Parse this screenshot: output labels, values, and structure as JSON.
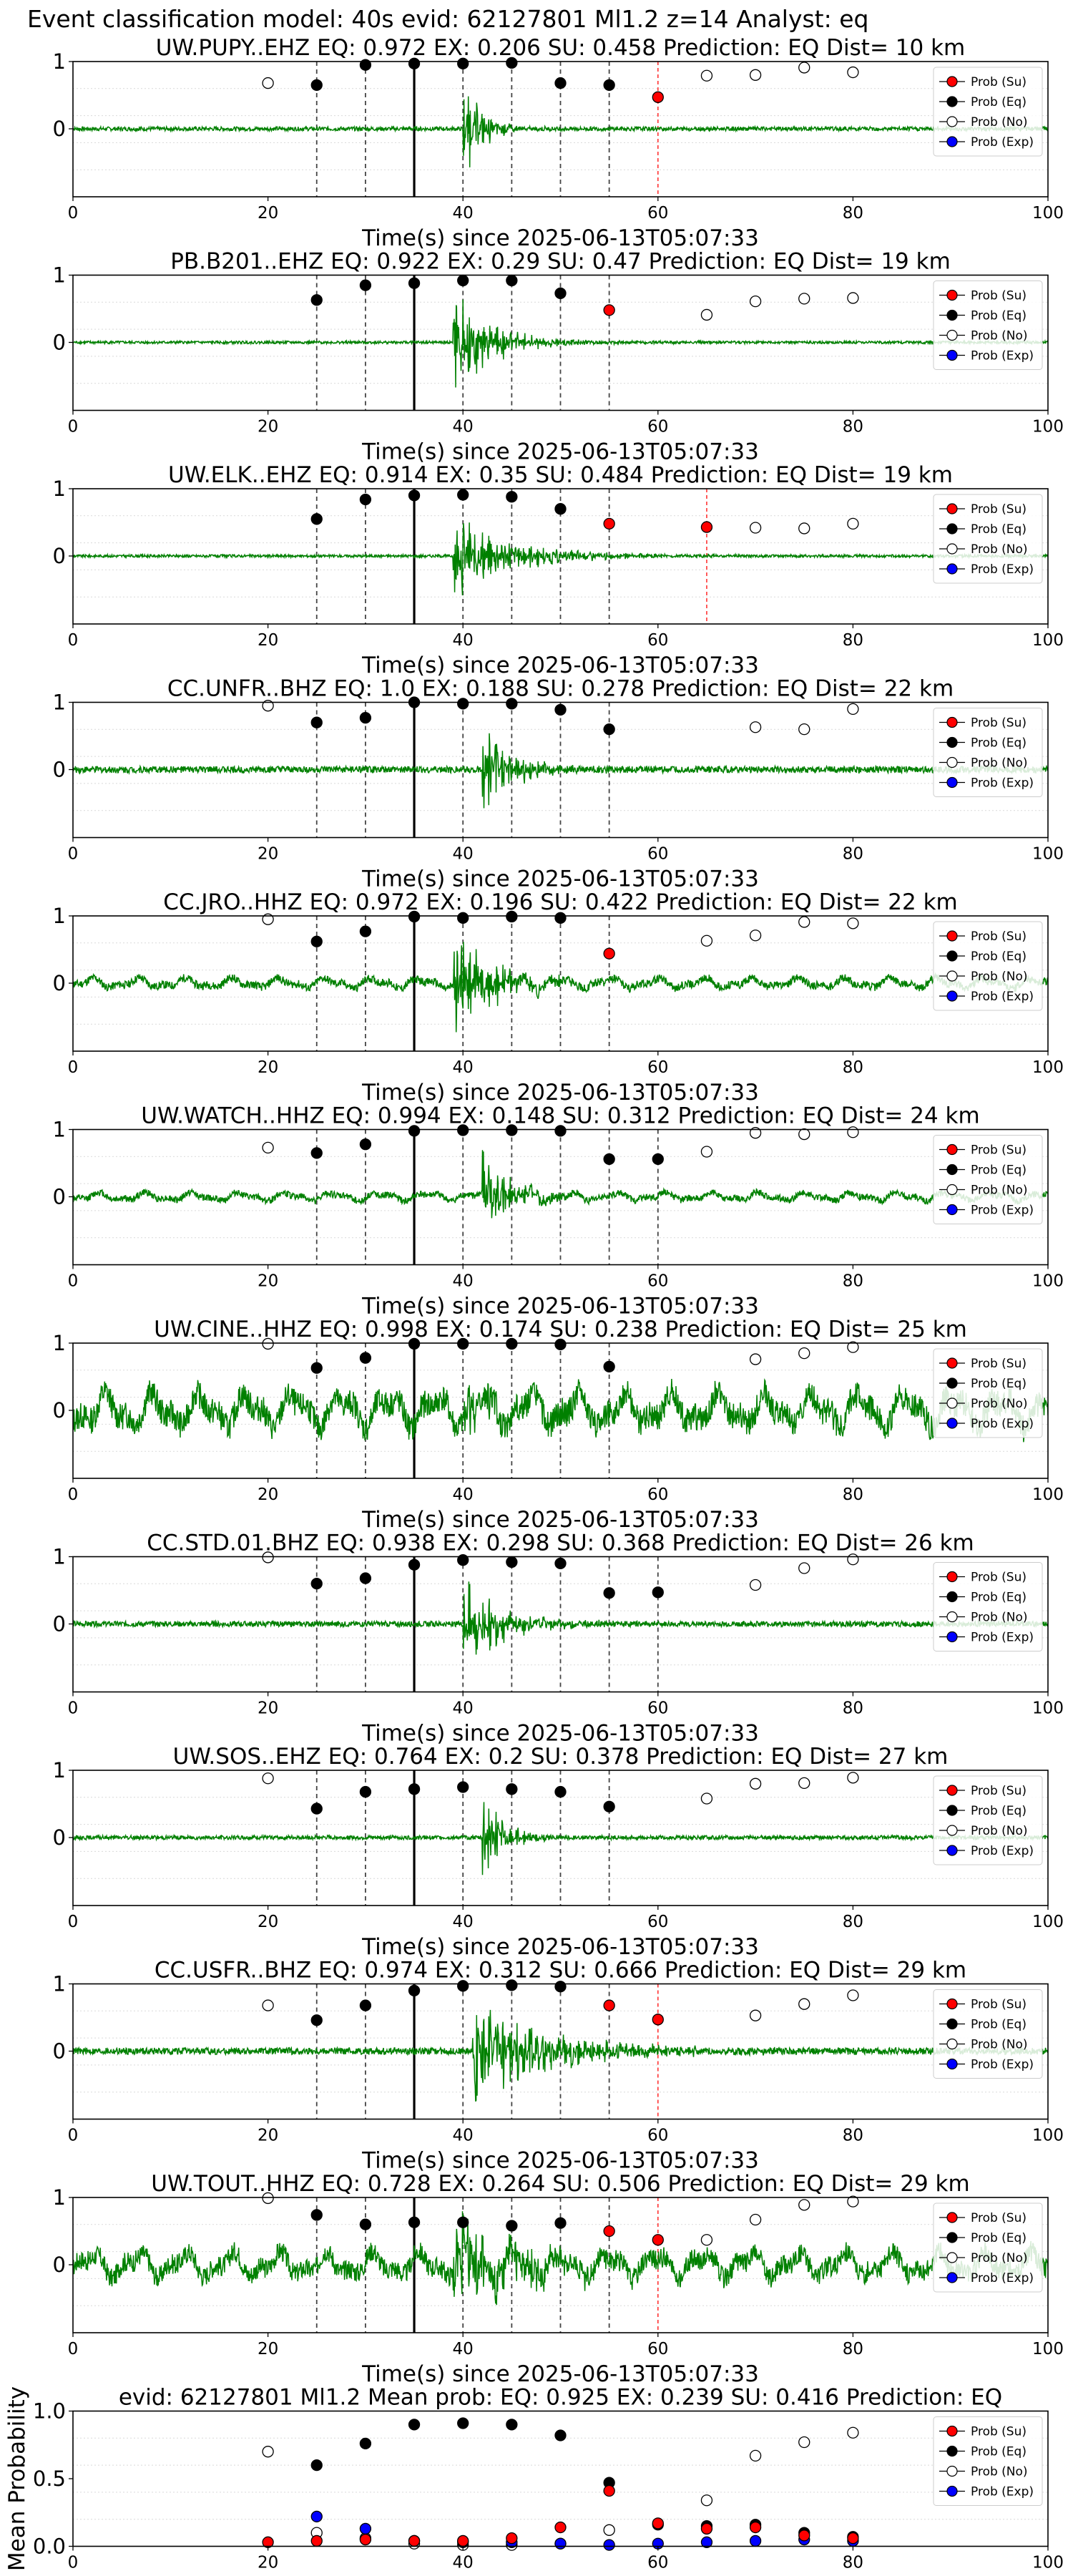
{
  "figure": {
    "suptitle": "Event classification model: 40s evid: 62127801 Ml1.2 z=14 Analyst: eq"
  },
  "legend": {
    "entries": [
      {
        "label": "Prob (Su)",
        "color": "#ff0000"
      },
      {
        "label": "Prob (Eq)",
        "color": "#000000"
      },
      {
        "label": "Prob (No)",
        "color": "#ffffff"
      },
      {
        "label": "Prob (Exp)",
        "color": "#0000ff"
      }
    ]
  },
  "colors": {
    "waveform": "#008000",
    "su": "#ff0000",
    "eq": "#000000",
    "no": "#ffffff",
    "exp": "#0000ff",
    "window_line": "#444444",
    "su_window_line": "#ff3333",
    "grid": "#d9d9d9"
  },
  "chart_data": [
    {
      "type": "scatter",
      "title": "UW.PUPY..EHZ   EQ: 0.972  EX: 0.206  SU: 0.458   Prediction: EQ    Dist= 10 km",
      "xlabel": "Time(s) since 2025-06-13T05:07:33",
      "xlim": [
        0,
        100
      ],
      "xticks": [
        "0",
        "20",
        "40",
        "60",
        "80",
        "100"
      ],
      "yticks": [
        "0",
        "1"
      ],
      "arrival_time": 35,
      "waveform": {
        "amp": 0.03,
        "event_amp": 0.5,
        "event_start": 40,
        "event_decay": 2,
        "low_freq": false
      },
      "series": {
        "su": [
          [
            60,
            0.47
          ]
        ],
        "eq": [
          [
            25,
            0.65
          ],
          [
            30,
            0.95
          ],
          [
            35,
            0.97
          ],
          [
            40,
            0.97
          ],
          [
            45,
            0.98
          ],
          [
            50,
            0.68
          ],
          [
            55,
            0.65
          ]
        ],
        "no": [
          [
            20,
            0.68
          ],
          [
            65,
            0.79
          ],
          [
            70,
            0.8
          ],
          [
            75,
            0.91
          ],
          [
            80,
            0.84
          ]
        ],
        "exp": []
      },
      "su_windows": [
        60
      ]
    },
    {
      "type": "scatter",
      "title": "PB.B201..EHZ   EQ: 0.922  EX: 0.29  SU: 0.47   Prediction: EQ    Dist= 19 km",
      "xlabel": "Time(s) since 2025-06-13T05:07:33",
      "xlim": [
        0,
        100
      ],
      "xticks": [
        "0",
        "20",
        "40",
        "60",
        "80",
        "100"
      ],
      "yticks": [
        "0",
        "1"
      ],
      "arrival_time": 35,
      "waveform": {
        "amp": 0.02,
        "event_amp": 0.55,
        "event_start": 39,
        "event_decay": 4,
        "low_freq": false
      },
      "series": {
        "su": [
          [
            55,
            0.48
          ]
        ],
        "eq": [
          [
            25,
            0.63
          ],
          [
            30,
            0.85
          ],
          [
            35,
            0.88
          ],
          [
            40,
            0.92
          ],
          [
            45,
            0.92
          ],
          [
            50,
            0.73
          ]
        ],
        "no": [
          [
            65,
            0.41
          ],
          [
            70,
            0.61
          ],
          [
            75,
            0.65
          ],
          [
            80,
            0.66
          ]
        ],
        "exp": []
      },
      "su_windows": []
    },
    {
      "type": "scatter",
      "title": "UW.ELK..EHZ   EQ: 0.914  EX: 0.35  SU: 0.484   Prediction: EQ    Dist= 19 km",
      "xlabel": "Time(s) since 2025-06-13T05:07:33",
      "xlim": [
        0,
        100
      ],
      "xticks": [
        "0",
        "20",
        "40",
        "60",
        "80",
        "100"
      ],
      "yticks": [
        "0",
        "1"
      ],
      "arrival_time": 35,
      "waveform": {
        "amp": 0.02,
        "event_amp": 0.45,
        "event_start": 39,
        "event_decay": 6,
        "low_freq": false
      },
      "series": {
        "su": [
          [
            55,
            0.48
          ],
          [
            65,
            0.43
          ]
        ],
        "eq": [
          [
            25,
            0.55
          ],
          [
            30,
            0.84
          ],
          [
            35,
            0.9
          ],
          [
            40,
            0.91
          ],
          [
            45,
            0.88
          ],
          [
            50,
            0.7
          ]
        ],
        "no": [
          [
            70,
            0.42
          ],
          [
            75,
            0.41
          ],
          [
            80,
            0.48
          ]
        ],
        "exp": []
      },
      "su_windows": [
        65
      ]
    },
    {
      "type": "scatter",
      "title": "CC.UNFR..BHZ   EQ: 1.0  EX: 0.188  SU: 0.278   Prediction: EQ    Dist= 22 km",
      "xlabel": "Time(s) since 2025-06-13T05:07:33",
      "xlim": [
        0,
        100
      ],
      "xticks": [
        "0",
        "20",
        "40",
        "60",
        "80",
        "100"
      ],
      "yticks": [
        "0",
        "1"
      ],
      "arrival_time": 35,
      "waveform": {
        "amp": 0.05,
        "event_amp": 0.5,
        "event_start": 42,
        "event_decay": 3,
        "low_freq": false
      },
      "series": {
        "su": [],
        "eq": [
          [
            25,
            0.7
          ],
          [
            30,
            0.77
          ],
          [
            35,
            1.0
          ],
          [
            40,
            0.98
          ],
          [
            45,
            0.98
          ],
          [
            50,
            0.89
          ],
          [
            55,
            0.6
          ]
        ],
        "no": [
          [
            20,
            0.95
          ],
          [
            70,
            0.63
          ],
          [
            75,
            0.6
          ],
          [
            80,
            0.9
          ]
        ],
        "exp": []
      },
      "su_windows": []
    },
    {
      "type": "scatter",
      "title": "CC.JRO..HHZ   EQ: 0.972  EX: 0.196  SU: 0.422   Prediction: EQ    Dist= 22 km",
      "xlabel": "Time(s) since 2025-06-13T05:07:33",
      "xlim": [
        0,
        100
      ],
      "xticks": [
        "0",
        "20",
        "40",
        "60",
        "80",
        "100"
      ],
      "yticks": [
        "0",
        "1"
      ],
      "arrival_time": 35,
      "waveform": {
        "amp": 0.06,
        "event_amp": 0.55,
        "event_start": 39,
        "event_decay": 4,
        "low_freq": true
      },
      "series": {
        "su": [
          [
            55,
            0.44
          ]
        ],
        "eq": [
          [
            25,
            0.62
          ],
          [
            30,
            0.77
          ],
          [
            35,
            0.99
          ],
          [
            40,
            0.97
          ],
          [
            45,
            0.99
          ],
          [
            50,
            0.97
          ]
        ],
        "no": [
          [
            20,
            0.95
          ],
          [
            65,
            0.63
          ],
          [
            70,
            0.71
          ],
          [
            75,
            0.91
          ],
          [
            80,
            0.89
          ]
        ],
        "exp": []
      },
      "su_windows": []
    },
    {
      "type": "scatter",
      "title": "UW.WATCH..HHZ   EQ: 0.994  EX: 0.148  SU: 0.312   Prediction: EQ    Dist= 24 km",
      "xlabel": "Time(s) since 2025-06-13T05:07:33",
      "xlim": [
        0,
        100
      ],
      "xticks": [
        "0",
        "20",
        "40",
        "60",
        "80",
        "100"
      ],
      "yticks": [
        "0",
        "1"
      ],
      "arrival_time": 35,
      "waveform": {
        "amp": 0.05,
        "event_amp": 0.45,
        "event_start": 42,
        "event_decay": 3,
        "low_freq": true
      },
      "series": {
        "su": [],
        "eq": [
          [
            25,
            0.65
          ],
          [
            30,
            0.78
          ],
          [
            35,
            0.98
          ],
          [
            40,
            0.99
          ],
          [
            45,
            0.99
          ],
          [
            50,
            0.98
          ],
          [
            55,
            0.56
          ],
          [
            60,
            0.56
          ]
        ],
        "no": [
          [
            20,
            0.73
          ],
          [
            65,
            0.67
          ],
          [
            70,
            0.95
          ],
          [
            75,
            0.93
          ],
          [
            80,
            0.96
          ]
        ],
        "exp": []
      },
      "su_windows": []
    },
    {
      "type": "scatter",
      "title": "UW.CINE..HHZ   EQ: 0.998  EX: 0.174  SU: 0.238   Prediction: EQ    Dist= 25 km",
      "xlabel": "Time(s) since 2025-06-13T05:07:33",
      "xlim": [
        0,
        100
      ],
      "xticks": [
        "0",
        "20",
        "40",
        "60",
        "80",
        "100"
      ],
      "yticks": [
        "0",
        "1"
      ],
      "arrival_time": 35,
      "waveform": {
        "amp": 0.2,
        "event_amp": 0.3,
        "event_start": 40,
        "event_decay": 4,
        "low_freq": true
      },
      "series": {
        "su": [],
        "eq": [
          [
            25,
            0.63
          ],
          [
            30,
            0.78
          ],
          [
            35,
            0.99
          ],
          [
            40,
            0.99
          ],
          [
            45,
            0.99
          ],
          [
            50,
            0.98
          ],
          [
            55,
            0.65
          ]
        ],
        "no": [
          [
            20,
            0.99
          ],
          [
            70,
            0.76
          ],
          [
            75,
            0.85
          ],
          [
            80,
            0.94
          ]
        ],
        "exp": []
      },
      "su_windows": []
    },
    {
      "type": "scatter",
      "title": "CC.STD.01.BHZ   EQ: 0.938  EX: 0.298  SU: 0.368   Prediction: EQ    Dist= 26 km",
      "xlabel": "Time(s) since 2025-06-13T05:07:33",
      "xlim": [
        0,
        100
      ],
      "xticks": [
        "0",
        "20",
        "40",
        "60",
        "80",
        "100"
      ],
      "yticks": [
        "0",
        "1"
      ],
      "arrival_time": 35,
      "waveform": {
        "amp": 0.04,
        "event_amp": 0.5,
        "event_start": 40,
        "event_decay": 4,
        "low_freq": false
      },
      "series": {
        "su": [],
        "eq": [
          [
            25,
            0.6
          ],
          [
            30,
            0.68
          ],
          [
            35,
            0.88
          ],
          [
            40,
            0.95
          ],
          [
            45,
            0.92
          ],
          [
            50,
            0.9
          ],
          [
            55,
            0.46
          ],
          [
            60,
            0.47
          ]
        ],
        "no": [
          [
            20,
            0.99
          ],
          [
            70,
            0.58
          ],
          [
            75,
            0.83
          ],
          [
            80,
            0.96
          ]
        ],
        "exp": []
      },
      "su_windows": []
    },
    {
      "type": "scatter",
      "title": "UW.SOS..EHZ   EQ: 0.764  EX: 0.2  SU: 0.378   Prediction: EQ    Dist= 27 km",
      "xlabel": "Time(s) since 2025-06-13T05:07:33",
      "xlim": [
        0,
        100
      ],
      "xticks": [
        "0",
        "20",
        "40",
        "60",
        "80",
        "100"
      ],
      "yticks": [
        "0",
        "1"
      ],
      "arrival_time": 35,
      "waveform": {
        "amp": 0.03,
        "event_amp": 0.6,
        "event_start": 42,
        "event_decay": 2,
        "low_freq": false
      },
      "series": {
        "su": [],
        "eq": [
          [
            25,
            0.43
          ],
          [
            30,
            0.68
          ],
          [
            35,
            0.72
          ],
          [
            40,
            0.75
          ],
          [
            45,
            0.72
          ],
          [
            50,
            0.68
          ],
          [
            55,
            0.46
          ]
        ],
        "no": [
          [
            20,
            0.88
          ],
          [
            65,
            0.58
          ],
          [
            70,
            0.8
          ],
          [
            75,
            0.81
          ],
          [
            80,
            0.89
          ]
        ],
        "exp": []
      },
      "su_windows": []
    },
    {
      "type": "scatter",
      "title": "CC.USFR..BHZ   EQ: 0.974  EX: 0.312  SU: 0.666   Prediction: EQ    Dist= 29 km",
      "xlabel": "Time(s) since 2025-06-13T05:07:33",
      "xlim": [
        0,
        100
      ],
      "xticks": [
        "0",
        "20",
        "40",
        "60",
        "80",
        "100"
      ],
      "yticks": [
        "0",
        "1"
      ],
      "arrival_time": 35,
      "waveform": {
        "amp": 0.05,
        "event_amp": 0.55,
        "event_start": 41,
        "event_decay": 8,
        "low_freq": false
      },
      "series": {
        "su": [
          [
            55,
            0.68
          ],
          [
            60,
            0.47
          ]
        ],
        "eq": [
          [
            25,
            0.46
          ],
          [
            30,
            0.68
          ],
          [
            35,
            0.9
          ],
          [
            40,
            0.97
          ],
          [
            45,
            0.98
          ],
          [
            50,
            0.96
          ]
        ],
        "no": [
          [
            20,
            0.68
          ],
          [
            70,
            0.53
          ],
          [
            75,
            0.7
          ],
          [
            80,
            0.83
          ]
        ],
        "exp": []
      },
      "su_windows": [
        60
      ]
    },
    {
      "type": "scatter",
      "title": "UW.TOUT..HHZ   EQ: 0.728  EX: 0.264  SU: 0.506   Prediction: EQ    Dist= 29 km",
      "xlabel": "Time(s) since 2025-06-13T05:07:33",
      "xlim": [
        0,
        100
      ],
      "xticks": [
        "0",
        "20",
        "40",
        "60",
        "80",
        "100"
      ],
      "yticks": [
        "0",
        "1"
      ],
      "arrival_time": 35,
      "waveform": {
        "amp": 0.15,
        "event_amp": 0.5,
        "event_start": 39,
        "event_decay": 6,
        "low_freq": true
      },
      "series": {
        "su": [
          [
            55,
            0.5
          ],
          [
            60,
            0.37
          ]
        ],
        "eq": [
          [
            25,
            0.74
          ],
          [
            30,
            0.6
          ],
          [
            35,
            0.63
          ],
          [
            40,
            0.63
          ],
          [
            45,
            0.58
          ],
          [
            50,
            0.62
          ]
        ],
        "no": [
          [
            20,
            0.99
          ],
          [
            65,
            0.37
          ],
          [
            70,
            0.67
          ],
          [
            75,
            0.89
          ],
          [
            80,
            0.94
          ]
        ],
        "exp": []
      },
      "su_windows": [
        60
      ]
    },
    {
      "type": "scatter",
      "title": "evid: 62127801  Ml1.2   Mean prob:   EQ: 0.925  EX: 0.239  SU: 0.416   Prediction: EQ",
      "xlabel": "",
      "ylabel": "Mean Probability",
      "xlim": [
        0,
        100
      ],
      "ylim": [
        0,
        1
      ],
      "xticks": [
        "0",
        "20",
        "40",
        "60",
        "80",
        "100"
      ],
      "yticks": [
        "0.0",
        "0.5",
        "1.0"
      ],
      "series": {
        "su": [
          [
            20,
            0.03
          ],
          [
            25,
            0.04
          ],
          [
            30,
            0.05
          ],
          [
            35,
            0.04
          ],
          [
            40,
            0.04
          ],
          [
            45,
            0.06
          ],
          [
            50,
            0.14
          ],
          [
            55,
            0.41
          ],
          [
            60,
            0.17
          ],
          [
            65,
            0.13
          ],
          [
            70,
            0.14
          ],
          [
            75,
            0.08
          ],
          [
            80,
            0.06
          ]
        ],
        "eq": [
          [
            25,
            0.6
          ],
          [
            30,
            0.76
          ],
          [
            35,
            0.9
          ],
          [
            40,
            0.91
          ],
          [
            45,
            0.9
          ],
          [
            50,
            0.82
          ],
          [
            55,
            0.47
          ],
          [
            60,
            0.16
          ],
          [
            65,
            0.15
          ],
          [
            70,
            0.16
          ],
          [
            75,
            0.1
          ],
          [
            80,
            0.07
          ]
        ],
        "no": [
          [
            20,
            0.7
          ],
          [
            25,
            0.1
          ],
          [
            30,
            0.06
          ],
          [
            35,
            0.02
          ],
          [
            40,
            0.01
          ],
          [
            45,
            0.01
          ],
          [
            50,
            0.02
          ],
          [
            55,
            0.12
          ],
          [
            65,
            0.34
          ],
          [
            70,
            0.67
          ],
          [
            75,
            0.77
          ],
          [
            80,
            0.84
          ]
        ],
        "exp": [
          [
            25,
            0.22
          ],
          [
            30,
            0.13
          ],
          [
            35,
            0.04
          ],
          [
            40,
            0.03
          ],
          [
            45,
            0.03
          ],
          [
            50,
            0.02
          ],
          [
            55,
            0.01
          ],
          [
            60,
            0.02
          ],
          [
            65,
            0.03
          ],
          [
            70,
            0.04
          ],
          [
            75,
            0.05
          ],
          [
            80,
            0.04
          ]
        ]
      }
    }
  ]
}
